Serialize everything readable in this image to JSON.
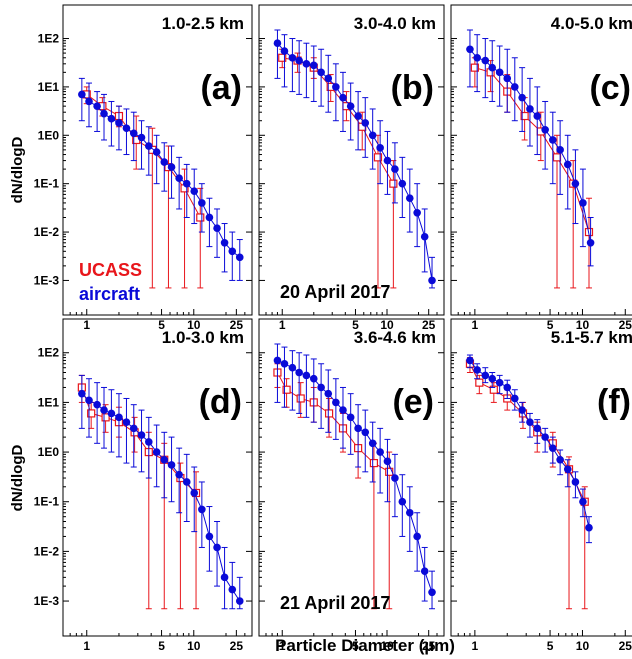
{
  "figure": {
    "ylabel": "dN/dlogD",
    "xlabel": "Particle Diameter (µm)",
    "legend": [
      {
        "name": "UCASS",
        "color": "#e8161b"
      },
      {
        "name": "aircraft",
        "color": "#0a0ad8"
      }
    ],
    "date_labels": [
      "20 April 2017",
      "21 April 2017"
    ],
    "y_tick_labels": [
      "1E2",
      "1E1",
      "1E0",
      "1E-1",
      "1E-2",
      "1E-3"
    ],
    "x_tick_labels": [
      "1",
      "5",
      "10",
      "25"
    ]
  },
  "chart_data": [
    {
      "type": "scatter",
      "panel": "(a)",
      "altitude": "1.0-2.5 km",
      "xscale": "log",
      "yscale": "log",
      "xlim": [
        0.6,
        35
      ],
      "ylim": [
        0.0005,
        150
      ],
      "series": [
        {
          "name": "UCASS",
          "marker": "open-square",
          "color": "#e8161b",
          "x": [
            1.0,
            1.4,
            2.0,
            2.9,
            4.1,
            5.8,
            8.2,
            11.5
          ],
          "y": [
            7.0,
            4.0,
            2.5,
            0.8,
            0.5,
            0.22,
            0.08,
            0.02
          ],
          "y_low": [
            4.5,
            2.5,
            1.5,
            0.2,
            0.0007,
            0.0007,
            0.0007,
            0.0007
          ],
          "y_high": [
            10.0,
            6.0,
            4.0,
            2.5,
            1.4,
            0.6,
            0.2,
            0.08
          ]
        },
        {
          "name": "aircraft",
          "marker": "filled-circle",
          "color": "#0a0ad8",
          "x": [
            0.9,
            1.05,
            1.25,
            1.45,
            1.7,
            2.0,
            2.35,
            2.75,
            3.25,
            3.8,
            4.5,
            5.3,
            6.2,
            7.3,
            8.6,
            10.1,
            11.9,
            14.0,
            16.5,
            19.4,
            22.9,
            26.9
          ],
          "y": [
            7.0,
            5.0,
            4.0,
            2.8,
            2.2,
            1.8,
            1.4,
            1.1,
            0.9,
            0.6,
            0.45,
            0.28,
            0.22,
            0.13,
            0.1,
            0.07,
            0.04,
            0.02,
            0.012,
            0.006,
            0.004,
            0.003
          ],
          "y_low": [
            2.0,
            1.5,
            1.2,
            0.8,
            0.6,
            0.5,
            0.4,
            0.3,
            0.2,
            0.15,
            0.1,
            0.07,
            0.05,
            0.03,
            0.02,
            0.015,
            0.01,
            0.005,
            0.003,
            0.0015,
            0.001,
            0.001
          ],
          "y_high": [
            15.0,
            12.0,
            8.0,
            7.0,
            5.0,
            4.0,
            3.5,
            3.0,
            2.0,
            1.5,
            1.0,
            0.7,
            0.6,
            0.35,
            0.25,
            0.2,
            0.1,
            0.05,
            0.03,
            0.015,
            0.01,
            0.007
          ]
        }
      ]
    },
    {
      "type": "scatter",
      "panel": "(b)",
      "altitude": "3.0-4.0 km",
      "xscale": "log",
      "yscale": "log",
      "xlim": [
        0.6,
        35
      ],
      "ylim": [
        0.0005,
        150
      ],
      "series": [
        {
          "name": "UCASS",
          "marker": "open-square",
          "color": "#e8161b",
          "x": [
            1.0,
            1.4,
            2.0,
            2.9,
            4.1,
            5.8,
            8.2,
            11.5
          ],
          "y": [
            40.0,
            35.0,
            25.0,
            10.0,
            4.0,
            1.5,
            0.35,
            0.1
          ],
          "y_low": [
            25.0,
            20.0,
            15.0,
            5.0,
            2.0,
            0.5,
            0.0007,
            0.0007
          ],
          "y_high": [
            60.0,
            50.0,
            40.0,
            18.0,
            8.0,
            3.0,
            1.0,
            0.3
          ]
        },
        {
          "name": "aircraft",
          "marker": "filled-circle",
          "color": "#0a0ad8",
          "x": [
            0.9,
            1.05,
            1.25,
            1.45,
            1.7,
            2.0,
            2.35,
            2.75,
            3.25,
            3.8,
            4.5,
            5.3,
            6.2,
            7.3,
            8.6,
            10.1,
            11.9,
            14.0,
            16.5,
            19.4,
            22.9,
            26.9
          ],
          "y": [
            80.0,
            55.0,
            40.0,
            35.0,
            30.0,
            28.0,
            20.0,
            15.0,
            10.0,
            6.0,
            4.0,
            2.5,
            1.8,
            1.0,
            0.55,
            0.3,
            0.2,
            0.1,
            0.05,
            0.025,
            0.008,
            0.001
          ],
          "y_low": [
            15.0,
            10.0,
            8.0,
            7.0,
            6.0,
            5.0,
            4.0,
            3.0,
            2.0,
            1.2,
            0.8,
            0.5,
            0.35,
            0.2,
            0.1,
            0.06,
            0.04,
            0.02,
            0.01,
            0.005,
            0.0015,
            0.0007
          ],
          "y_high": [
            150.0,
            120.0,
            100.0,
            90.0,
            80.0,
            70.0,
            60.0,
            45.0,
            30.0,
            20.0,
            12.0,
            8.0,
            6.0,
            3.5,
            2.0,
            1.2,
            0.7,
            0.35,
            0.2,
            0.1,
            0.03,
            0.003
          ]
        }
      ]
    },
    {
      "type": "scatter",
      "panel": "(c)",
      "altitude": "4.0-5.0 km",
      "xscale": "log",
      "yscale": "log",
      "xlim": [
        0.6,
        35
      ],
      "ylim": [
        0.0005,
        150
      ],
      "series": [
        {
          "name": "UCASS",
          "marker": "open-square",
          "color": "#e8161b",
          "x": [
            1.0,
            1.4,
            2.0,
            2.9,
            4.1,
            5.8,
            8.2,
            11.5
          ],
          "y": [
            25.0,
            20.0,
            8.0,
            2.5,
            1.2,
            0.35,
            0.1,
            0.01
          ],
          "y_low": [
            10.0,
            8.0,
            3.0,
            0.8,
            0.3,
            0.0007,
            0.0007,
            0.0007
          ],
          "y_high": [
            40.0,
            35.0,
            18.0,
            6.0,
            3.0,
            1.0,
            0.3,
            0.05
          ]
        },
        {
          "name": "aircraft",
          "marker": "filled-circle",
          "color": "#0a0ad8",
          "x": [
            0.9,
            1.05,
            1.25,
            1.45,
            1.7,
            2.0,
            2.35,
            2.75,
            3.25,
            3.8,
            4.5,
            5.3,
            6.2,
            7.3,
            8.6,
            10.1,
            11.9
          ],
          "y": [
            60.0,
            40.0,
            35.0,
            25.0,
            20.0,
            15.0,
            10.0,
            6.0,
            3.5,
            2.5,
            1.3,
            0.8,
            0.5,
            0.25,
            0.1,
            0.04,
            0.006
          ],
          "y_low": [
            10.0,
            8.0,
            6.0,
            5.0,
            4.0,
            3.0,
            2.0,
            1.2,
            0.6,
            0.4,
            0.2,
            0.1,
            0.06,
            0.03,
            0.015,
            0.005,
            0.002
          ],
          "y_high": [
            150.0,
            120.0,
            100.0,
            90.0,
            70.0,
            60.0,
            40.0,
            25.0,
            15.0,
            10.0,
            5.0,
            3.0,
            2.0,
            1.0,
            0.5,
            0.2,
            0.02
          ]
        }
      ]
    },
    {
      "type": "scatter",
      "panel": "(d)",
      "altitude": "1.0-3.0 km",
      "xscale": "log",
      "yscale": "log",
      "xlim": [
        0.6,
        35
      ],
      "ylim": [
        0.0005,
        150
      ],
      "series": [
        {
          "name": "UCASS",
          "marker": "open-square",
          "color": "#e8161b",
          "x": [
            0.9,
            1.1,
            1.5,
            2.0,
            2.8,
            3.8,
            5.3,
            7.5,
            10.5
          ],
          "y": [
            20.0,
            6.0,
            5.0,
            4.0,
            2.5,
            1.0,
            0.7,
            0.3,
            0.15
          ],
          "y_low": [
            10.0,
            3.0,
            2.5,
            2.0,
            1.0,
            0.0007,
            0.0007,
            0.0007,
            0.0007
          ],
          "y_high": [
            35.0,
            10.0,
            9.0,
            8.0,
            5.0,
            2.5,
            1.5,
            0.6,
            0.4
          ]
        },
        {
          "name": "aircraft",
          "marker": "filled-circle",
          "color": "#0a0ad8",
          "x": [
            0.9,
            1.05,
            1.25,
            1.45,
            1.7,
            2.0,
            2.35,
            2.75,
            3.25,
            3.8,
            4.5,
            5.3,
            6.2,
            7.3,
            8.6,
            10.1,
            11.9,
            14.0,
            16.5,
            19.4,
            22.9,
            26.9
          ],
          "y": [
            15.0,
            11.0,
            9.0,
            7.0,
            6.0,
            5.0,
            4.0,
            3.0,
            2.2,
            1.6,
            1.0,
            0.7,
            0.55,
            0.35,
            0.25,
            0.15,
            0.07,
            0.02,
            0.012,
            0.003,
            0.0017,
            0.001
          ],
          "y_low": [
            3.0,
            2.0,
            1.5,
            1.2,
            1.0,
            0.8,
            0.6,
            0.5,
            0.4,
            0.3,
            0.2,
            0.12,
            0.1,
            0.06,
            0.04,
            0.025,
            0.012,
            0.004,
            0.002,
            0.0007,
            0.0007,
            0.0007
          ],
          "y_high": [
            35.0,
            30.0,
            25.0,
            20.0,
            18.0,
            15.0,
            12.0,
            9.0,
            7.0,
            5.0,
            3.5,
            2.5,
            2.0,
            1.2,
            0.9,
            0.5,
            0.25,
            0.08,
            0.04,
            0.012,
            0.006,
            0.003
          ]
        }
      ]
    },
    {
      "type": "scatter",
      "panel": "(e)",
      "altitude": "3.6-4.6 km",
      "xscale": "log",
      "yscale": "log",
      "xlim": [
        0.6,
        35
      ],
      "ylim": [
        0.0005,
        150
      ],
      "series": [
        {
          "name": "UCASS",
          "marker": "open-square",
          "color": "#e8161b",
          "x": [
            0.9,
            1.1,
            1.5,
            2.0,
            2.8,
            3.8,
            5.3,
            7.5,
            10.5
          ],
          "y": [
            40.0,
            18.0,
            12.0,
            10.0,
            6.0,
            3.0,
            1.2,
            0.6,
            0.4
          ],
          "y_low": [
            20.0,
            8.0,
            5.0,
            4.0,
            2.0,
            1.0,
            0.3,
            0.0007,
            0.0007
          ],
          "y_high": [
            60.0,
            30.0,
            25.0,
            20.0,
            12.0,
            6.0,
            3.0,
            1.5,
            1.0
          ]
        },
        {
          "name": "aircraft",
          "marker": "filled-circle",
          "color": "#0a0ad8",
          "x": [
            0.9,
            1.05,
            1.25,
            1.45,
            1.7,
            2.0,
            2.35,
            2.75,
            3.25,
            3.8,
            4.5,
            5.3,
            6.2,
            7.3,
            8.6,
            10.1,
            11.9,
            14.0,
            16.5,
            19.4,
            22.9,
            26.9
          ],
          "y": [
            70.0,
            60.0,
            50.0,
            40.0,
            35.0,
            30.0,
            20.0,
            15.0,
            10.0,
            7.0,
            5.0,
            3.0,
            2.5,
            1.5,
            1.0,
            0.65,
            0.3,
            0.1,
            0.06,
            0.02,
            0.004,
            0.0015
          ],
          "y_low": [
            10.0,
            8.0,
            7.0,
            6.0,
            5.0,
            4.0,
            3.0,
            2.5,
            1.8,
            1.2,
            0.9,
            0.5,
            0.4,
            0.25,
            0.15,
            0.1,
            0.05,
            0.02,
            0.01,
            0.004,
            0.001,
            0.0007
          ],
          "y_high": [
            150.0,
            130.0,
            110.0,
            100.0,
            90.0,
            75.0,
            60.0,
            45.0,
            30.0,
            20.0,
            15.0,
            9.0,
            7.0,
            4.0,
            3.0,
            1.8,
            0.9,
            0.35,
            0.2,
            0.06,
            0.012,
            0.004
          ]
        }
      ]
    },
    {
      "type": "scatter",
      "panel": "(f)",
      "altitude": "5.1-5.7 km",
      "xscale": "log",
      "yscale": "log",
      "xlim": [
        0.6,
        35
      ],
      "ylim": [
        0.0005,
        150
      ],
      "series": [
        {
          "name": "UCASS",
          "marker": "open-square",
          "color": "#e8161b",
          "x": [
            0.9,
            1.1,
            1.5,
            2.0,
            2.8,
            3.8,
            5.3,
            7.5,
            10.5
          ],
          "y": [
            60.0,
            25.0,
            18.0,
            12.0,
            6.0,
            2.5,
            1.5,
            0.45,
            0.1
          ],
          "y_low": [
            40.0,
            15.0,
            10.0,
            7.0,
            3.0,
            1.0,
            0.5,
            0.0007,
            0.0007
          ],
          "y_high": [
            80.0,
            35.0,
            25.0,
            18.0,
            10.0,
            4.0,
            2.5,
            0.8,
            0.2
          ]
        },
        {
          "name": "aircraft",
          "marker": "filled-circle",
          "color": "#0a0ad8",
          "x": [
            0.9,
            1.05,
            1.25,
            1.45,
            1.7,
            2.0,
            2.35,
            2.75,
            3.25,
            3.8,
            4.5,
            5.3,
            6.2,
            7.3,
            8.6,
            10.1,
            11.5
          ],
          "y": [
            70.0,
            45.0,
            35.0,
            30.0,
            25.0,
            20.0,
            12.0,
            7.0,
            4.0,
            3.0,
            2.0,
            1.2,
            0.7,
            0.45,
            0.25,
            0.1,
            0.03
          ],
          "y_low": [
            50.0,
            30.0,
            25.0,
            20.0,
            15.0,
            12.0,
            7.0,
            4.0,
            2.0,
            1.5,
            1.0,
            0.6,
            0.35,
            0.2,
            0.12,
            0.05,
            0.015
          ],
          "y_high": [
            90.0,
            60.0,
            50.0,
            40.0,
            35.0,
            28.0,
            18.0,
            10.0,
            6.0,
            4.5,
            3.0,
            2.0,
            1.1,
            0.7,
            0.4,
            0.18,
            0.05
          ]
        }
      ]
    }
  ]
}
